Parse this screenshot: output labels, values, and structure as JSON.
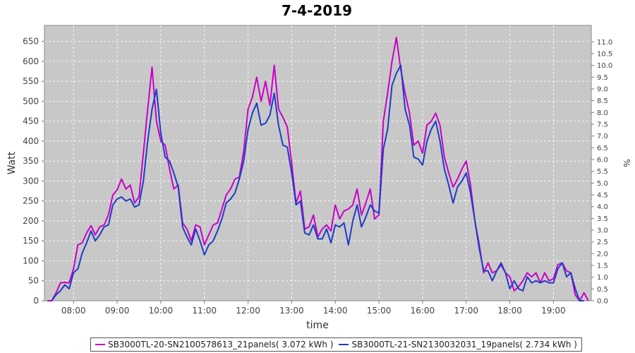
{
  "chart_data": {
    "type": "line",
    "title": "7-4-2019",
    "xlabel": "time",
    "ylabel": "Watt",
    "y2label": "%",
    "ylim": [
      0,
      690
    ],
    "y2lim": [
      0,
      11.7
    ],
    "xlim": [
      "07:20",
      "19:52"
    ],
    "x_ticks": [
      "08:00",
      "09:00",
      "10:00",
      "11:00",
      "12:00",
      "13:00",
      "14:00",
      "15:00",
      "16:00",
      "17:00",
      "18:00",
      "19:00"
    ],
    "y_ticks": [
      0,
      50,
      100,
      150,
      200,
      250,
      300,
      350,
      400,
      450,
      500,
      550,
      600,
      650
    ],
    "y2_ticks": [
      "0.0",
      "0.5",
      "1.0",
      "1.5",
      "2.0",
      "2.5",
      "3.0",
      "3.5",
      "4.0",
      "4.5",
      "5.0",
      "5.5",
      "6.0",
      "6.5",
      "7.0",
      "7.5",
      "8.0",
      "8.5",
      "9.0",
      "9.5",
      "10.0",
      "10.5",
      "11.0"
    ],
    "grid": true,
    "legend_position": "bottom",
    "series": [
      {
        "name": "SB3000TL-20-SN2100578613_21panels( 3.072 kWh )",
        "color": "#c800c8",
        "points": [
          [
            "07:24",
            0
          ],
          [
            "07:30",
            0
          ],
          [
            "07:36",
            20
          ],
          [
            "07:42",
            45
          ],
          [
            "07:48",
            46
          ],
          [
            "07:54",
            45
          ],
          [
            "08:00",
            80
          ],
          [
            "08:06",
            140
          ],
          [
            "08:12",
            145
          ],
          [
            "08:18",
            170
          ],
          [
            "08:24",
            188
          ],
          [
            "08:30",
            165
          ],
          [
            "08:36",
            185
          ],
          [
            "08:42",
            190
          ],
          [
            "08:48",
            215
          ],
          [
            "08:54",
            265
          ],
          [
            "09:00",
            278
          ],
          [
            "09:06",
            305
          ],
          [
            "09:12",
            280
          ],
          [
            "09:18",
            290
          ],
          [
            "09:24",
            245
          ],
          [
            "09:30",
            260
          ],
          [
            "09:36",
            370
          ],
          [
            "09:42",
            480
          ],
          [
            "09:48",
            585
          ],
          [
            "09:54",
            450
          ],
          [
            "10:00",
            400
          ],
          [
            "10:06",
            390
          ],
          [
            "10:12",
            330
          ],
          [
            "10:18",
            280
          ],
          [
            "10:24",
            290
          ],
          [
            "10:30",
            195
          ],
          [
            "10:36",
            180
          ],
          [
            "10:42",
            150
          ],
          [
            "10:48",
            190
          ],
          [
            "10:54",
            185
          ],
          [
            "11:00",
            140
          ],
          [
            "11:06",
            165
          ],
          [
            "11:12",
            190
          ],
          [
            "11:18",
            195
          ],
          [
            "11:24",
            230
          ],
          [
            "11:30",
            265
          ],
          [
            "11:36",
            280
          ],
          [
            "11:42",
            305
          ],
          [
            "11:48",
            310
          ],
          [
            "11:54",
            375
          ],
          [
            "12:00",
            480
          ],
          [
            "12:06",
            510
          ],
          [
            "12:12",
            560
          ],
          [
            "12:18",
            500
          ],
          [
            "12:24",
            550
          ],
          [
            "12:30",
            490
          ],
          [
            "12:36",
            590
          ],
          [
            "12:42",
            480
          ],
          [
            "12:48",
            460
          ],
          [
            "12:54",
            435
          ],
          [
            "13:00",
            345
          ],
          [
            "13:06",
            245
          ],
          [
            "13:12",
            275
          ],
          [
            "13:18",
            180
          ],
          [
            "13:24",
            185
          ],
          [
            "13:30",
            215
          ],
          [
            "13:36",
            160
          ],
          [
            "13:42",
            180
          ],
          [
            "13:48",
            190
          ],
          [
            "13:54",
            175
          ],
          [
            "14:00",
            240
          ],
          [
            "14:06",
            205
          ],
          [
            "14:12",
            225
          ],
          [
            "14:18",
            230
          ],
          [
            "14:24",
            240
          ],
          [
            "14:30",
            280
          ],
          [
            "14:36",
            215
          ],
          [
            "14:42",
            245
          ],
          [
            "14:48",
            280
          ],
          [
            "14:54",
            205
          ],
          [
            "15:00",
            215
          ],
          [
            "15:06",
            450
          ],
          [
            "15:12",
            520
          ],
          [
            "15:18",
            600
          ],
          [
            "15:24",
            660
          ],
          [
            "15:30",
            580
          ],
          [
            "15:36",
            520
          ],
          [
            "15:42",
            470
          ],
          [
            "15:48",
            390
          ],
          [
            "15:54",
            400
          ],
          [
            "16:00",
            370
          ],
          [
            "16:06",
            440
          ],
          [
            "16:12",
            450
          ],
          [
            "16:18",
            470
          ],
          [
            "16:24",
            440
          ],
          [
            "16:30",
            360
          ],
          [
            "16:36",
            320
          ],
          [
            "16:42",
            285
          ],
          [
            "16:48",
            305
          ],
          [
            "16:54",
            330
          ],
          [
            "17:00",
            350
          ],
          [
            "17:06",
            290
          ],
          [
            "17:12",
            200
          ],
          [
            "17:18",
            140
          ],
          [
            "17:24",
            70
          ],
          [
            "17:30",
            95
          ],
          [
            "17:36",
            70
          ],
          [
            "17:42",
            75
          ],
          [
            "17:48",
            90
          ],
          [
            "17:54",
            70
          ],
          [
            "18:00",
            60
          ],
          [
            "18:06",
            25
          ],
          [
            "18:12",
            35
          ],
          [
            "18:18",
            50
          ],
          [
            "18:24",
            70
          ],
          [
            "18:30",
            60
          ],
          [
            "18:36",
            70
          ],
          [
            "18:42",
            45
          ],
          [
            "18:48",
            70
          ],
          [
            "18:54",
            50
          ],
          [
            "19:00",
            55
          ],
          [
            "19:06",
            90
          ],
          [
            "19:12",
            95
          ],
          [
            "19:18",
            75
          ],
          [
            "19:24",
            70
          ],
          [
            "19:30",
            15
          ],
          [
            "19:36",
            0
          ],
          [
            "19:42",
            20
          ],
          [
            "19:48",
            0
          ]
        ]
      },
      {
        "name": "SB3000TL-21-SN2130032031_19panels( 2.734 kWh )",
        "color": "#1e3cc8",
        "points": [
          [
            "07:30",
            0
          ],
          [
            "07:36",
            15
          ],
          [
            "07:42",
            25
          ],
          [
            "07:48",
            40
          ],
          [
            "07:54",
            30
          ],
          [
            "08:00",
            70
          ],
          [
            "08:06",
            80
          ],
          [
            "08:12",
            120
          ],
          [
            "08:18",
            145
          ],
          [
            "08:24",
            175
          ],
          [
            "08:30",
            150
          ],
          [
            "08:36",
            165
          ],
          [
            "08:42",
            185
          ],
          [
            "08:48",
            190
          ],
          [
            "08:54",
            240
          ],
          [
            "09:00",
            255
          ],
          [
            "09:06",
            260
          ],
          [
            "09:12",
            250
          ],
          [
            "09:18",
            255
          ],
          [
            "09:24",
            235
          ],
          [
            "09:30",
            240
          ],
          [
            "09:36",
            300
          ],
          [
            "09:42",
            400
          ],
          [
            "09:48",
            480
          ],
          [
            "09:54",
            530
          ],
          [
            "10:00",
            420
          ],
          [
            "10:06",
            360
          ],
          [
            "10:12",
            350
          ],
          [
            "10:18",
            320
          ],
          [
            "10:24",
            285
          ],
          [
            "10:30",
            185
          ],
          [
            "10:36",
            160
          ],
          [
            "10:42",
            140
          ],
          [
            "10:48",
            180
          ],
          [
            "10:54",
            150
          ],
          [
            "11:00",
            115
          ],
          [
            "11:06",
            140
          ],
          [
            "11:12",
            150
          ],
          [
            "11:18",
            175
          ],
          [
            "11:24",
            205
          ],
          [
            "11:30",
            245
          ],
          [
            "11:36",
            255
          ],
          [
            "11:42",
            270
          ],
          [
            "11:48",
            305
          ],
          [
            "11:54",
            350
          ],
          [
            "12:00",
            430
          ],
          [
            "12:06",
            470
          ],
          [
            "12:12",
            495
          ],
          [
            "12:18",
            440
          ],
          [
            "12:24",
            445
          ],
          [
            "12:30",
            465
          ],
          [
            "12:36",
            520
          ],
          [
            "12:42",
            440
          ],
          [
            "12:48",
            390
          ],
          [
            "12:54",
            385
          ],
          [
            "13:00",
            320
          ],
          [
            "13:06",
            240
          ],
          [
            "13:12",
            250
          ],
          [
            "13:18",
            170
          ],
          [
            "13:24",
            165
          ],
          [
            "13:30",
            190
          ],
          [
            "13:36",
            155
          ],
          [
            "13:42",
            155
          ],
          [
            "13:48",
            180
          ],
          [
            "13:54",
            145
          ],
          [
            "14:00",
            190
          ],
          [
            "14:06",
            185
          ],
          [
            "14:12",
            195
          ],
          [
            "14:18",
            140
          ],
          [
            "14:24",
            200
          ],
          [
            "14:30",
            240
          ],
          [
            "14:36",
            185
          ],
          [
            "14:42",
            210
          ],
          [
            "14:48",
            240
          ],
          [
            "14:54",
            225
          ],
          [
            "15:00",
            220
          ],
          [
            "15:06",
            380
          ],
          [
            "15:12",
            430
          ],
          [
            "15:18",
            540
          ],
          [
            "15:24",
            570
          ],
          [
            "15:30",
            590
          ],
          [
            "15:36",
            480
          ],
          [
            "15:42",
            440
          ],
          [
            "15:48",
            360
          ],
          [
            "15:54",
            355
          ],
          [
            "16:00",
            340
          ],
          [
            "16:06",
            400
          ],
          [
            "16:12",
            430
          ],
          [
            "16:18",
            450
          ],
          [
            "16:24",
            400
          ],
          [
            "16:30",
            330
          ],
          [
            "16:36",
            290
          ],
          [
            "16:42",
            245
          ],
          [
            "16:48",
            285
          ],
          [
            "16:54",
            300
          ],
          [
            "17:00",
            320
          ],
          [
            "17:06",
            270
          ],
          [
            "17:12",
            200
          ],
          [
            "17:18",
            130
          ],
          [
            "17:24",
            75
          ],
          [
            "17:30",
            75
          ],
          [
            "17:36",
            50
          ],
          [
            "17:42",
            75
          ],
          [
            "17:48",
            95
          ],
          [
            "17:54",
            70
          ],
          [
            "18:00",
            30
          ],
          [
            "18:06",
            50
          ],
          [
            "18:12",
            30
          ],
          [
            "18:18",
            25
          ],
          [
            "18:24",
            60
          ],
          [
            "18:30",
            45
          ],
          [
            "18:36",
            50
          ],
          [
            "18:42",
            45
          ],
          [
            "18:48",
            50
          ],
          [
            "18:54",
            45
          ],
          [
            "19:00",
            45
          ],
          [
            "19:06",
            80
          ],
          [
            "19:12",
            95
          ],
          [
            "19:18",
            60
          ],
          [
            "19:24",
            70
          ],
          [
            "19:30",
            30
          ],
          [
            "19:36",
            0
          ],
          [
            "19:42",
            0
          ]
        ]
      }
    ]
  }
}
